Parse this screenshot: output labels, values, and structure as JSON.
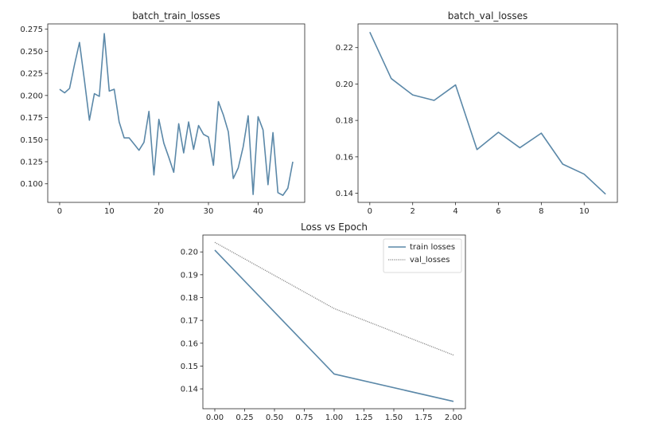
{
  "chart_data": [
    {
      "type": "line",
      "title": "batch_train_losses",
      "xlabel": "",
      "ylabel": "",
      "xlim": [
        -2.4,
        49.4
      ],
      "ylim": [
        0.079,
        0.281
      ],
      "xticks": [
        0,
        10,
        20,
        30,
        40
      ],
      "yticks": [
        0.1,
        0.125,
        0.15,
        0.175,
        0.2,
        0.225,
        0.25,
        0.275
      ],
      "ytick_labels": [
        "0.100",
        "0.125",
        "0.150",
        "0.175",
        "0.200",
        "0.225",
        "0.250",
        "0.275"
      ],
      "grid": false,
      "series": [
        {
          "color": "#5b88a8",
          "dash": "solid",
          "x": [
            0,
            1,
            2,
            3,
            4,
            5,
            6,
            7,
            8,
            9,
            10,
            11,
            12,
            13,
            14,
            15,
            16,
            17,
            18,
            19,
            20,
            21,
            22,
            23,
            24,
            25,
            26,
            27,
            28,
            29,
            30,
            31,
            32,
            33,
            34,
            35,
            36,
            37,
            38,
            39,
            40,
            41,
            42,
            43,
            44,
            45,
            46,
            47
          ],
          "y": [
            0.207,
            0.203,
            0.208,
            0.235,
            0.26,
            0.217,
            0.172,
            0.202,
            0.199,
            0.27,
            0.205,
            0.207,
            0.17,
            0.152,
            0.152,
            0.145,
            0.138,
            0.147,
            0.182,
            0.11,
            0.173,
            0.146,
            0.13,
            0.113,
            0.168,
            0.135,
            0.17,
            0.139,
            0.166,
            0.156,
            0.153,
            0.121,
            0.193,
            0.178,
            0.159,
            0.106,
            0.118,
            0.142,
            0.177,
            0.088,
            0.176,
            0.161,
            0.099,
            0.158,
            0.09,
            0.087,
            0.095,
            0.125
          ]
        }
      ]
    },
    {
      "type": "line",
      "title": "batch_val_losses",
      "xlabel": "",
      "ylabel": "",
      "xlim": [
        -0.55,
        11.55
      ],
      "ylim": [
        0.135,
        0.233
      ],
      "xticks": [
        0,
        2,
        4,
        6,
        8,
        10
      ],
      "yticks": [
        0.14,
        0.16,
        0.18,
        0.2,
        0.22
      ],
      "ytick_labels": [
        "0.14",
        "0.16",
        "0.18",
        "0.20",
        "0.22"
      ],
      "grid": false,
      "series": [
        {
          "color": "#5b88a8",
          "dash": "solid",
          "x": [
            0,
            1,
            2,
            3,
            4,
            5,
            6,
            7,
            8,
            9,
            10,
            11
          ],
          "y": [
            0.2285,
            0.203,
            0.194,
            0.191,
            0.1995,
            0.164,
            0.1735,
            0.165,
            0.173,
            0.156,
            0.1505,
            0.1395
          ]
        }
      ]
    },
    {
      "type": "line",
      "title": "Loss vs Epoch",
      "xlabel": "",
      "ylabel": "",
      "xlim": [
        -0.1,
        2.1
      ],
      "ylim": [
        0.1313,
        0.2074
      ],
      "xticks": [
        0,
        0.25,
        0.5,
        0.75,
        1.0,
        1.25,
        1.5,
        1.75,
        2.0
      ],
      "xtick_labels": [
        "0.00",
        "0.25",
        "0.50",
        "0.75",
        "1.00",
        "1.25",
        "1.50",
        "1.75",
        "2.00"
      ],
      "yticks": [
        0.14,
        0.15,
        0.16,
        0.17,
        0.18,
        0.19,
        0.2
      ],
      "ytick_labels": [
        "0.14",
        "0.15",
        "0.16",
        "0.17",
        "0.18",
        "0.19",
        "0.20"
      ],
      "grid": false,
      "legend": "top-right",
      "series": [
        {
          "name": "train losses",
          "color": "#5b88a8",
          "dash": "solid",
          "x": [
            0,
            1,
            2
          ],
          "y": [
            0.2008,
            0.1465,
            0.1345
          ]
        },
        {
          "name": "val_losses",
          "color": "#8a8a8a",
          "dash": "dotted",
          "x": [
            0,
            1,
            2
          ],
          "y": [
            0.2042,
            0.1752,
            0.1548
          ]
        }
      ]
    }
  ]
}
